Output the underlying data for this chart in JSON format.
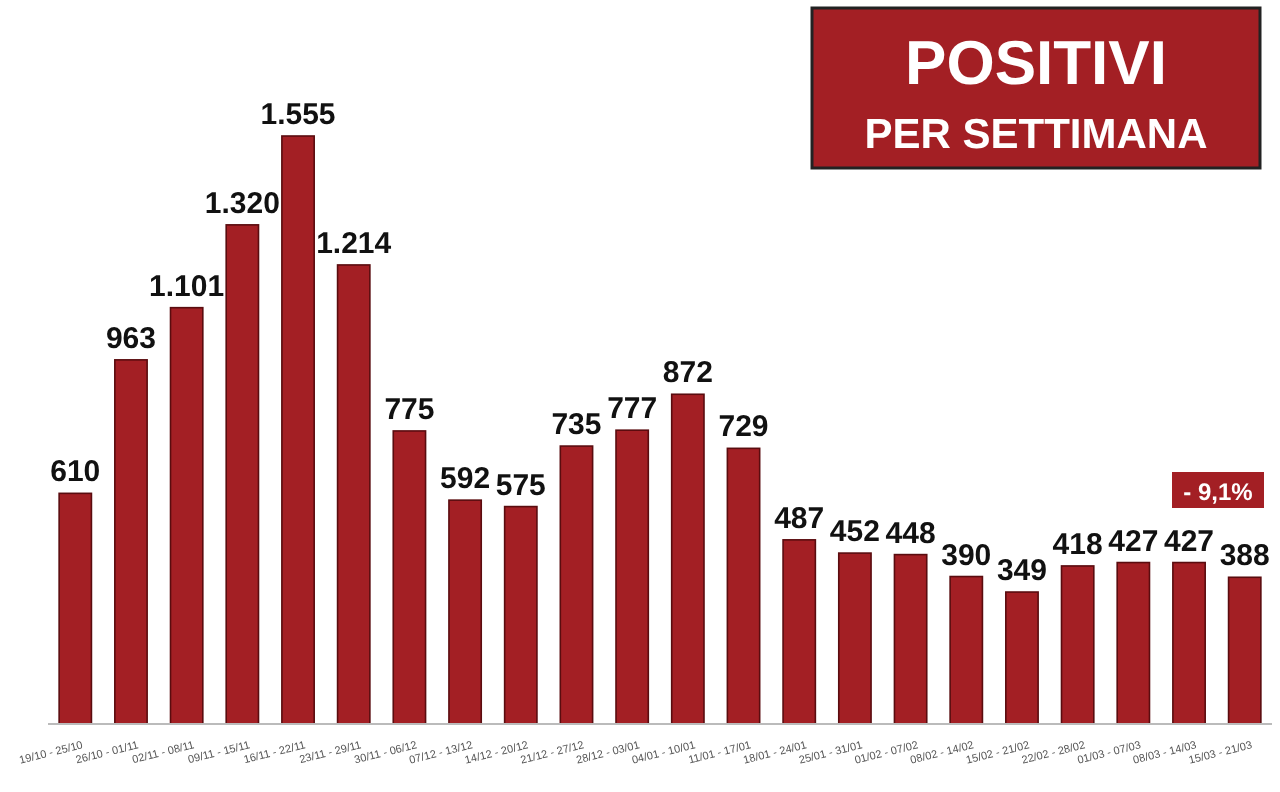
{
  "chart_data": {
    "type": "bar",
    "title": "POSITIVI",
    "subtitle": "PER SETTIMANA",
    "categories": [
      "19/10 - 25/10",
      "26/10 - 01/11",
      "02/11 - 08/11",
      "09/11 - 15/11",
      "16/11 - 22/11",
      "23/11 - 29/11",
      "30/11 - 06/12",
      "07/12 - 13/12",
      "14/12 - 20/12",
      "21/12 - 27/12",
      "28/12 - 03/01",
      "04/01 - 10/01",
      "11/01 - 17/01",
      "18/01 - 24/01",
      "25/01 - 31/01",
      "01/02 - 07/02",
      "08/02 - 14/02",
      "15/02 - 21/02",
      "22/02 - 28/02",
      "01/03 - 07/03",
      "08/03 - 14/03",
      "15/03 - 21/03"
    ],
    "values": [
      610,
      963,
      1101,
      1320,
      1555,
      1214,
      775,
      592,
      575,
      735,
      777,
      872,
      729,
      487,
      452,
      448,
      390,
      349,
      418,
      427,
      427,
      388
    ],
    "value_labels": [
      "610",
      "963",
      "1.101",
      "1.320",
      "1.555",
      "1.214",
      "775",
      "592",
      "575",
      "735",
      "777",
      "872",
      "729",
      "487",
      "452",
      "448",
      "390",
      "349",
      "418",
      "427",
      "427",
      "388"
    ],
    "color": "#a31f24",
    "annotations": [
      "- 9,1%"
    ]
  }
}
